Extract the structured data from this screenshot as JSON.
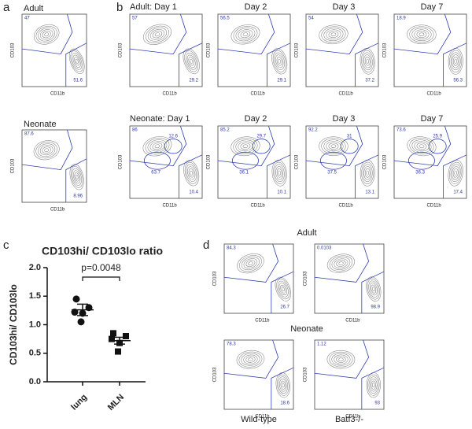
{
  "panel_labels": [
    "a",
    "b",
    "c",
    "d"
  ],
  "flow": {
    "x_label": "CD11b",
    "y_label": "CD103"
  },
  "panel_a": {
    "plots": [
      {
        "title": "Adult",
        "gates": [
          "47",
          "51.6"
        ]
      },
      {
        "title": "Neonate",
        "gates": [
          "87.6",
          "8.96"
        ]
      }
    ]
  },
  "panel_b": {
    "rows": [
      {
        "plots": [
          {
            "title": "Adult: Day 1",
            "gates": [
              "57",
              "29.2"
            ]
          },
          {
            "title": "Day 2",
            "gates": [
              "56.5",
              "29.1"
            ]
          },
          {
            "title": "Day 3",
            "gates": [
              "54",
              "37.2"
            ]
          },
          {
            "title": "Day 7",
            "gates": [
              "18.9",
              "56.3"
            ]
          }
        ]
      },
      {
        "plots": [
          {
            "title": "Neonate: Day 1",
            "gates": [
              "86",
              "12.6",
              "63.7",
              "10.4"
            ]
          },
          {
            "title": "Day 2",
            "gates": [
              "85.2",
              "29.7",
              "36.1",
              "10.1"
            ]
          },
          {
            "title": "Day 3",
            "gates": [
              "92.2",
              "31",
              "37.5",
              "13.1"
            ]
          },
          {
            "title": "Day 7",
            "gates": [
              "73.6",
              "25.9",
              "36.3",
              "17.4"
            ]
          }
        ]
      }
    ]
  },
  "panel_d": {
    "row_titles": [
      "Adult",
      "Neonate"
    ],
    "column_labels": [
      "Wild-type",
      "Batf3-/-"
    ],
    "rows": [
      {
        "plots": [
          {
            "gates": [
              "84.3",
              "26.7"
            ]
          },
          {
            "gates": [
              "0.0103",
              "98.9"
            ]
          }
        ]
      },
      {
        "plots": [
          {
            "gates": [
              "78.3",
              "18.6"
            ]
          },
          {
            "gates": [
              "1.12",
              "93"
            ]
          }
        ]
      }
    ]
  },
  "chart_data": {
    "type": "dotplot",
    "title": "CD103hi/ CD103lo ratio",
    "y_label": "CD103hi/ CD103lo",
    "annotation": "p=0.0048",
    "categories": [
      "lung",
      "MLN"
    ],
    "color": "#111111",
    "points": [
      [
        1.45,
        1.3,
        1.22,
        1.2,
        1.05
      ],
      [
        0.85,
        0.8,
        0.75,
        0.68,
        0.53
      ]
    ],
    "mean": [
      1.26,
      0.72
    ],
    "sem": [
      0.1,
      0.06
    ],
    "ylim": [
      0,
      2
    ],
    "yticks": [
      {
        "value": 0,
        "label": "0.0"
      },
      {
        "value": 0.5,
        "label": "0.5"
      },
      {
        "value": 1,
        "label": "1.0"
      },
      {
        "value": 1.5,
        "label": "1.5"
      },
      {
        "value": 2,
        "label": "2.0"
      }
    ]
  }
}
